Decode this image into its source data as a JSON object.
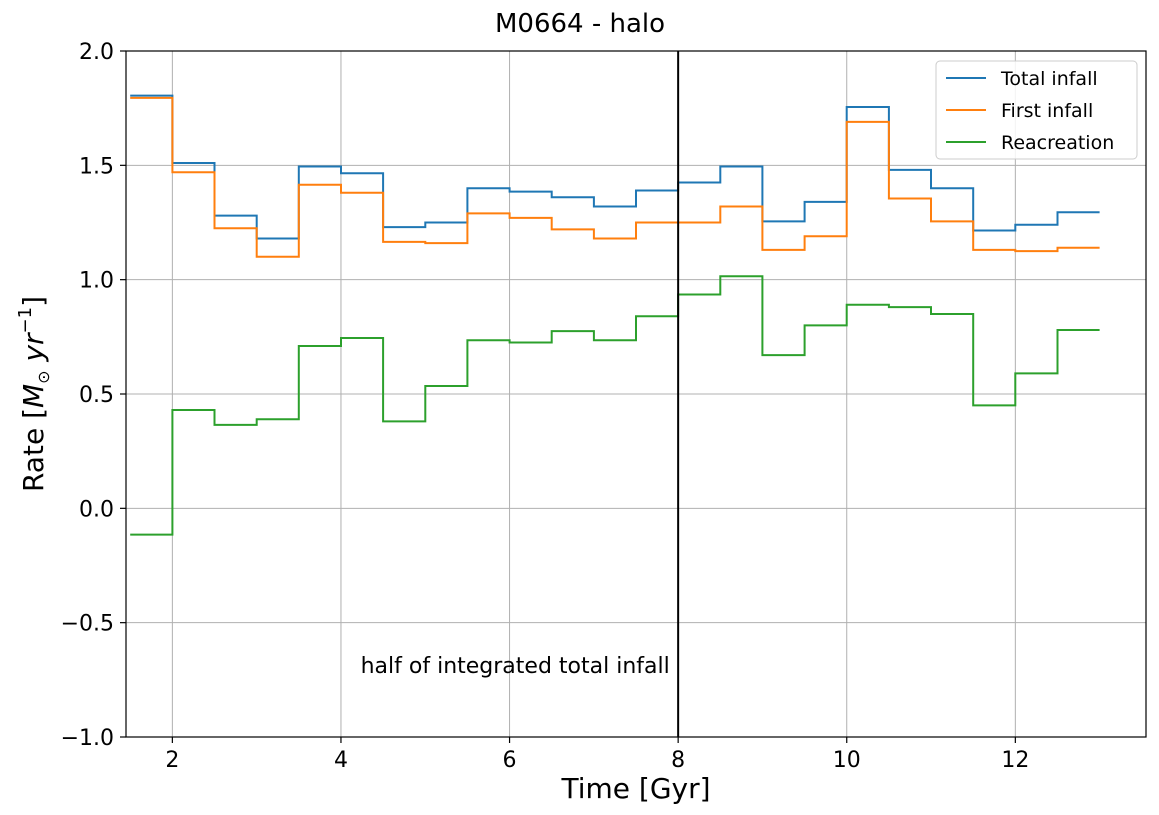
{
  "chart_data": {
    "type": "line",
    "title": "M0664 - halo",
    "xlabel": "Time [Gyr]",
    "ylabel_parts": [
      "Rate [",
      "M",
      "⊙",
      " yr",
      "−1",
      "]"
    ],
    "xlim": [
      1.45,
      13.55
    ],
    "ylim": [
      -1.0,
      2.0
    ],
    "xticks": [
      2,
      4,
      6,
      8,
      10,
      12
    ],
    "yticks": [
      -1.0,
      -0.5,
      0.0,
      0.5,
      1.0,
      1.5,
      2.0
    ],
    "xtick_labels": [
      "2",
      "4",
      "6",
      "8",
      "10",
      "12"
    ],
    "ytick_labels": [
      "−1.0",
      "−0.5",
      "0.0",
      "0.5",
      "1.0",
      "1.5",
      "2.0"
    ],
    "grid": true,
    "legend_position": "top-right",
    "step_edges": [
      1.5,
      2.0,
      2.5,
      3.0,
      3.5,
      4.0,
      4.5,
      5.0,
      5.5,
      6.0,
      6.5,
      7.0,
      7.5,
      8.0,
      8.5,
      9.0,
      9.5,
      10.0,
      10.5,
      11.0,
      11.5,
      12.0,
      12.5,
      13.0
    ],
    "series": [
      {
        "name": "Total infall",
        "color": "#1f77b4",
        "values": [
          1.805,
          1.51,
          1.28,
          1.18,
          1.495,
          1.465,
          1.23,
          1.25,
          1.4,
          1.385,
          1.36,
          1.32,
          1.39,
          1.425,
          1.495,
          1.255,
          1.34,
          1.755,
          1.48,
          1.4,
          1.215,
          1.24,
          1.295
        ]
      },
      {
        "name": "First infall",
        "color": "#ff7f0e",
        "values": [
          1.795,
          1.47,
          1.225,
          1.1,
          1.415,
          1.38,
          1.165,
          1.16,
          1.29,
          1.27,
          1.22,
          1.18,
          1.25,
          1.25,
          1.32,
          1.13,
          1.19,
          1.69,
          1.355,
          1.255,
          1.13,
          1.125,
          1.14
        ]
      },
      {
        "name": "Reacreation",
        "color": "#2ca02c",
        "values": [
          -0.115,
          0.43,
          0.365,
          0.39,
          0.71,
          0.745,
          0.38,
          0.535,
          0.735,
          0.725,
          0.775,
          0.735,
          0.84,
          0.935,
          1.015,
          0.67,
          0.8,
          0.89,
          0.88,
          0.85,
          0.45,
          0.59,
          0.78
        ]
      }
    ],
    "vline": {
      "x": 8.0,
      "color": "#000000"
    },
    "annotation": {
      "text": "half of integrated total infall",
      "x": 7.9,
      "y": -0.72
    }
  }
}
